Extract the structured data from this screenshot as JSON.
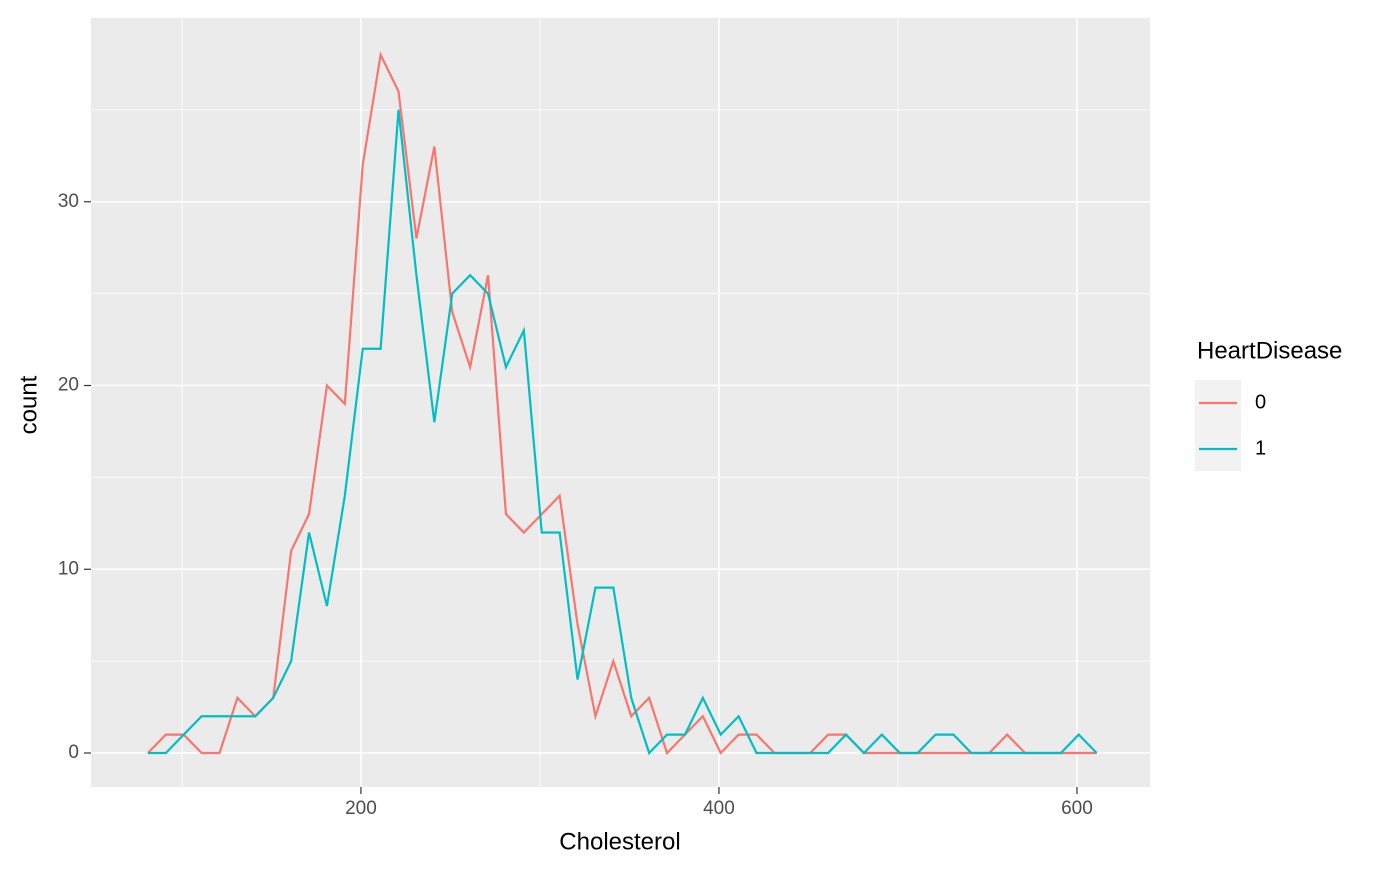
{
  "chart_data": {
    "type": "line",
    "x_label": "Cholesterol",
    "y_label": "count",
    "legend_title": "HeartDisease",
    "x": [
      81,
      91,
      101,
      111,
      121,
      131,
      141,
      151,
      161,
      171,
      181,
      191,
      201,
      211,
      221,
      231,
      241,
      251,
      261,
      271,
      281,
      291,
      301,
      311,
      321,
      331,
      341,
      351,
      361,
      371,
      381,
      391,
      401,
      411,
      421,
      431,
      441,
      451,
      461,
      471,
      481,
      491,
      501,
      511,
      521,
      531,
      541,
      551,
      561,
      571,
      581,
      591,
      601,
      611
    ],
    "series": [
      {
        "name": "0",
        "color": "#f8766d",
        "values": [
          0,
          1,
          1,
          0,
          0,
          3,
          2,
          3,
          11,
          13,
          20,
          19,
          32,
          38,
          36,
          28,
          33,
          24,
          21,
          26,
          13,
          12,
          13,
          14,
          7,
          2,
          5,
          2,
          3,
          0,
          1,
          2,
          0,
          1,
          1,
          0,
          0,
          0,
          1,
          1,
          0,
          0,
          0,
          0,
          0,
          0,
          0,
          0,
          1,
          0,
          0,
          0,
          0,
          0
        ]
      },
      {
        "name": "1",
        "color": "#00bfc4",
        "values": [
          0,
          0,
          1,
          2,
          2,
          2,
          2,
          3,
          5,
          12,
          8,
          14,
          22,
          22,
          35,
          26,
          18,
          25,
          26,
          25,
          21,
          23,
          12,
          12,
          4,
          9,
          9,
          3,
          0,
          1,
          1,
          3,
          1,
          2,
          0,
          0,
          0,
          0,
          0,
          1,
          0,
          1,
          0,
          0,
          1,
          1,
          0,
          0,
          0,
          0,
          0,
          0,
          1,
          0
        ]
      }
    ],
    "xlim": [
      49.2,
      640.8
    ],
    "xticks": [
      200,
      400,
      600
    ],
    "xminor": [
      100,
      300,
      500
    ],
    "ylim": [
      -1.85,
      40
    ],
    "yticks": [
      0,
      10,
      20,
      30
    ],
    "yminor": [
      5,
      15,
      25,
      35
    ],
    "grid": true,
    "legend": "right"
  }
}
